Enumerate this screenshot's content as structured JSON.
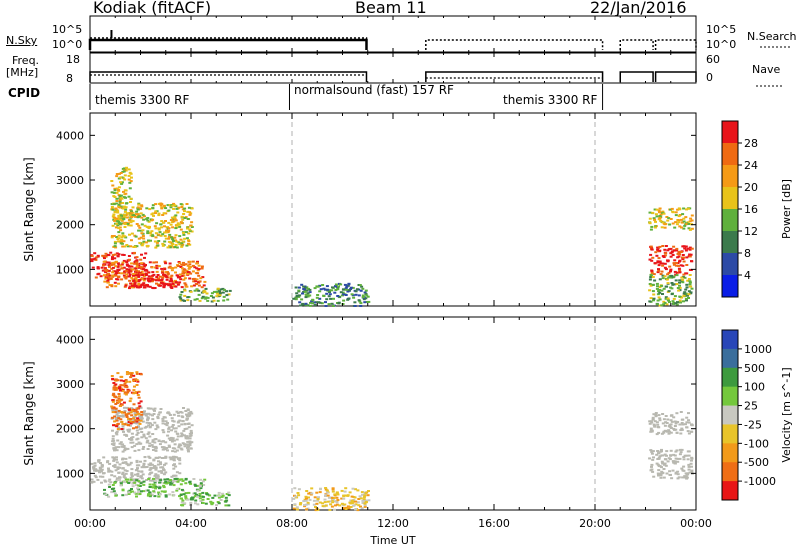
{
  "header": {
    "station": "Kodiak (fitACF)",
    "beam": "Beam 11",
    "date": "22/Jan/2016"
  },
  "top_panels": {
    "nsky_label": "N.Sky",
    "nsky_ticks": [
      "10^5",
      "10^0"
    ],
    "nsearch_label": "N.Search",
    "nsearch_ticks": [
      "10^5",
      "10^0"
    ],
    "freq_label": "Freq.",
    "freq_unit": "[MHz]",
    "freq_ticks": [
      "18",
      "8"
    ],
    "nave_label": "Nave",
    "nave_ticks": [
      "60",
      "0"
    ],
    "cpid_label": "CPID",
    "cpid_segments": [
      "themis 3300 RF",
      "normalsound (fast) 157 RF",
      "themis 3300 RF"
    ]
  },
  "colors": {
    "power_scale": [
      "#0a1ee6",
      "#2c4aa6",
      "#3b7a4c",
      "#5fb03c",
      "#e8c31a",
      "#f59a16",
      "#ef6a12",
      "#e8141a"
    ],
    "velocity_scale": [
      "#2846b8",
      "#3a6e9c",
      "#3d9a3e",
      "#74c83c",
      "#c8c8c0",
      "#e8c42a",
      "#f29a1a",
      "#ef6e16",
      "#e81616"
    ],
    "groundscatter": "#b8b8b0",
    "dashed_grid": "#b0b0b0"
  },
  "chart_data": [
    {
      "type": "heatmap",
      "name": "power",
      "ylabel": "Slant Range [km]",
      "xlabel": "",
      "colorbar_label": "Power [dB]",
      "colorbar_ticks": [
        "4",
        "8",
        "12",
        "16",
        "20",
        "24",
        "28"
      ],
      "x_ticks": [
        "00:00",
        "04:00",
        "08:00",
        "12:00",
        "16:00",
        "20:00",
        "00:00"
      ],
      "x_range_hours": [
        0,
        24
      ],
      "y_ticks": [
        "1000",
        "2000",
        "3000",
        "4000"
      ],
      "y_range_km": [
        180,
        4500
      ],
      "grid_dashed_hours": [
        8,
        20
      ],
      "regions": [
        {
          "t": [
            0,
            2.2
          ],
          "r": [
            800,
            1400
          ],
          "level": 7
        },
        {
          "t": [
            0.5,
            4.5
          ],
          "r": [
            600,
            1200
          ],
          "level": 6
        },
        {
          "t": [
            1.5,
            3.5
          ],
          "r": [
            600,
            900
          ],
          "level": 8
        },
        {
          "t": [
            0.8,
            4
          ],
          "r": [
            1500,
            2500
          ],
          "level": 4
        },
        {
          "t": [
            0.8,
            1.6
          ],
          "r": [
            2000,
            3300
          ],
          "level": 4
        },
        {
          "t": [
            3.5,
            5.5
          ],
          "r": [
            300,
            600
          ],
          "level": 3
        },
        {
          "t": [
            8,
            11
          ],
          "r": [
            200,
            700
          ],
          "level": 2
        },
        {
          "t": [
            22.1,
            23.8
          ],
          "r": [
            900,
            1550
          ],
          "level": 7
        },
        {
          "t": [
            22.1,
            23.8
          ],
          "r": [
            1900,
            2400
          ],
          "level": 4
        },
        {
          "t": [
            22.1,
            23.8
          ],
          "r": [
            200,
            900
          ],
          "level": 3
        }
      ]
    },
    {
      "type": "heatmap",
      "name": "velocity",
      "ylabel": "Slant Range [km]",
      "xlabel": "Time UT",
      "colorbar_label": "Velocity [m s^-1]",
      "colorbar_ticks": [
        "1000",
        "500",
        "100",
        "25",
        "-25",
        "-100",
        "-500",
        "-1000"
      ],
      "x_ticks": [
        "00:00",
        "04:00",
        "08:00",
        "12:00",
        "16:00",
        "20:00",
        "00:00"
      ],
      "x_range_hours": [
        0,
        24
      ],
      "y_ticks": [
        "1000",
        "2000",
        "3000",
        "4000"
      ],
      "y_range_km": [
        180,
        4500
      ],
      "grid_dashed_hours": [
        8,
        20
      ],
      "regions": [
        {
          "t": [
            0,
            3.5
          ],
          "r": [
            800,
            1400
          ],
          "level": "gs"
        },
        {
          "t": [
            0.5,
            4.5
          ],
          "r": [
            500,
            900
          ],
          "level": 3
        },
        {
          "t": [
            0.8,
            4
          ],
          "r": [
            1500,
            2500
          ],
          "level": "gs"
        },
        {
          "t": [
            0.8,
            2
          ],
          "r": [
            2000,
            3300
          ],
          "level": 7
        },
        {
          "t": [
            3.5,
            5.5
          ],
          "r": [
            300,
            600
          ],
          "level": 3
        },
        {
          "t": [
            8,
            11
          ],
          "r": [
            200,
            700
          ],
          "level": 5
        },
        {
          "t": [
            22.1,
            23.8
          ],
          "r": [
            900,
            1550
          ],
          "level": "gs"
        },
        {
          "t": [
            22.1,
            23.8
          ],
          "r": [
            1900,
            2400
          ],
          "level": "gs"
        }
      ]
    }
  ]
}
